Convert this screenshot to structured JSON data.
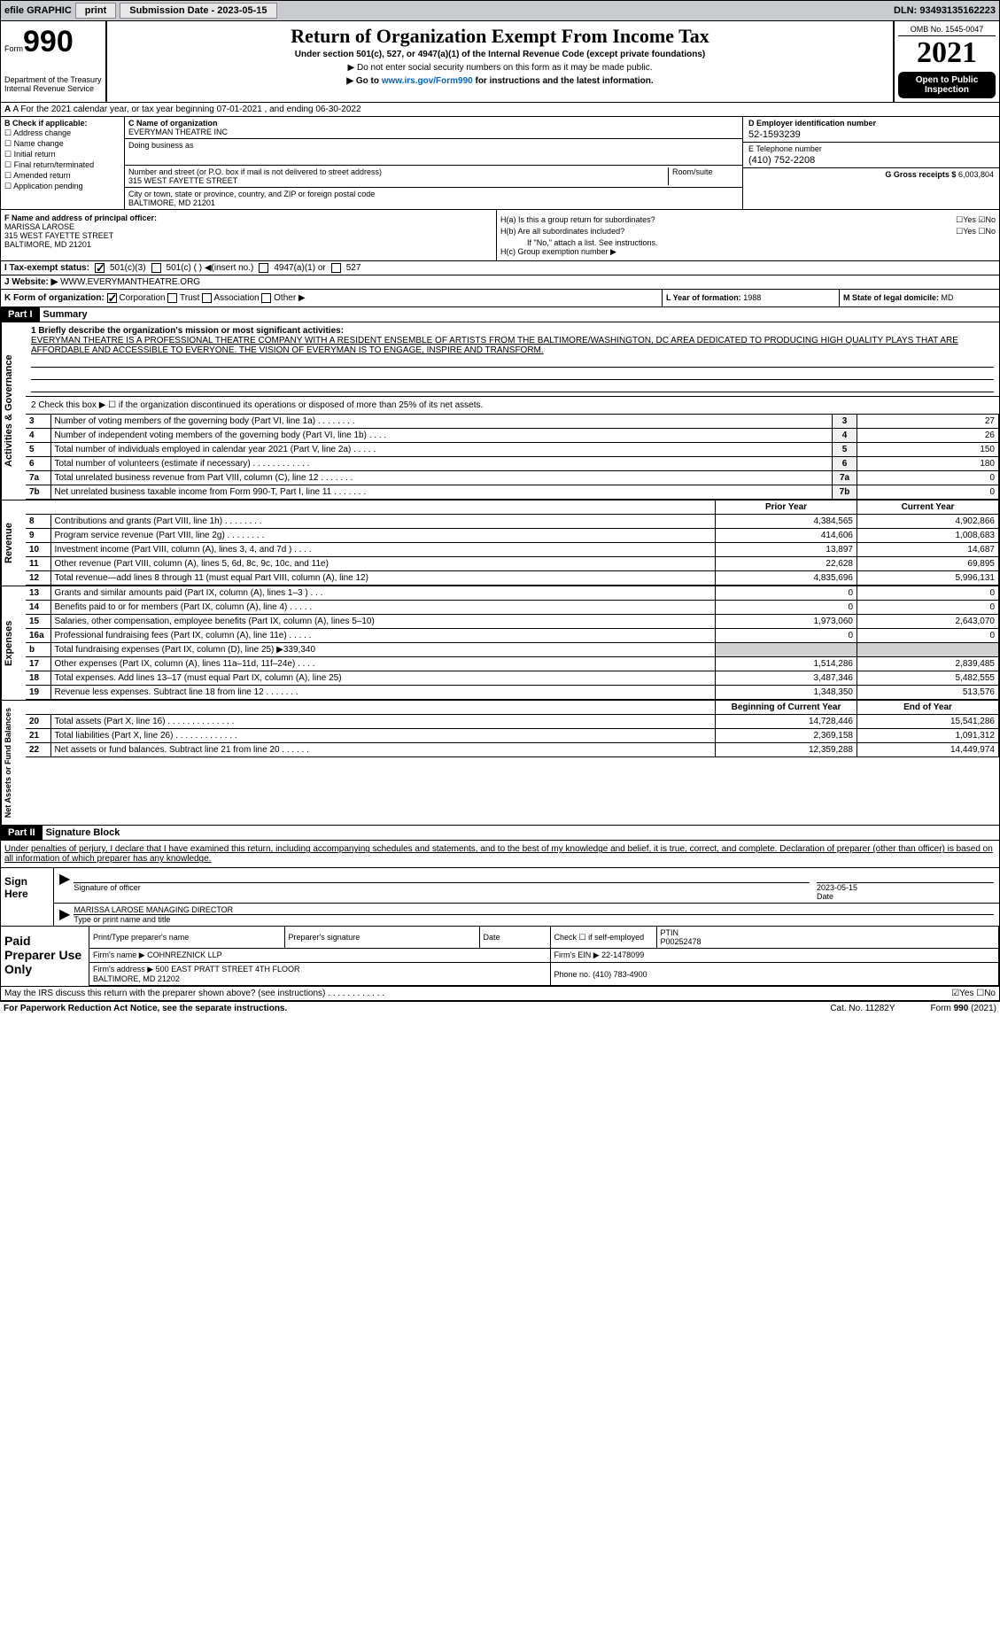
{
  "topbar": {
    "efile": "efile GRAPHIC",
    "print": "print",
    "subdate_label": "Submission Date - 2023-05-15",
    "dln": "DLN: 93493135162223"
  },
  "header": {
    "form_prefix": "Form",
    "form_num": "990",
    "dept": "Department of the Treasury\nInternal Revenue Service",
    "title": "Return of Organization Exempt From Income Tax",
    "sub1": "Under section 501(c), 527, or 4947(a)(1) of the Internal Revenue Code (except private foundations)",
    "sub2": "▶ Do not enter social security numbers on this form as it may be made public.",
    "sub3": "▶ Go to www.irs.gov/Form990 for instructions and the latest information.",
    "link": "www.irs.gov/Form990",
    "omb": "OMB No. 1545-0047",
    "year": "2021",
    "open": "Open to Public Inspection"
  },
  "row_a": {
    "text": "A For the 2021 calendar year, or tax year beginning 07-01-2021   , and ending 06-30-2022"
  },
  "col_b": {
    "label": "B Check if applicable:",
    "items": [
      "Address change",
      "Name change",
      "Initial return",
      "Final return/terminated",
      "Amended return",
      "Application pending"
    ]
  },
  "col_c": {
    "name_label": "C Name of organization",
    "name": "EVERYMAN THEATRE INC",
    "dba_label": "Doing business as",
    "dba": "",
    "addr_label": "Number and street (or P.O. box if mail is not delivered to street address)",
    "addr": "315 WEST FAYETTE STREET",
    "room_label": "Room/suite",
    "city_label": "City or town, state or province, country, and ZIP or foreign postal code",
    "city": "BALTIMORE, MD  21201"
  },
  "col_d": {
    "d_label": "D Employer identification number",
    "d_val": "52-1593239",
    "e_label": "E Telephone number",
    "e_val": "(410) 752-2208",
    "g_label": "G Gross receipts $",
    "g_val": "6,003,804"
  },
  "col_f": {
    "label": "F Name and address of principal officer:",
    "name": "MARISSA LAROSE",
    "addr1": "315 WEST FAYETTE STREET",
    "addr2": "BALTIMORE, MD  21201"
  },
  "col_h": {
    "ha": "H(a)  Is this a group return for subordinates?",
    "ha_ans": "☐Yes ☑No",
    "hb": "H(b)  Are all subordinates included?",
    "hb_ans": "☐Yes ☐No",
    "hb_note": "If \"No,\" attach a list. See instructions.",
    "hc": "H(c)  Group exemption number ▶"
  },
  "tax_status": {
    "i_label": "I  Tax-exempt status:",
    "opts": [
      "501(c)(3)",
      "501(c) (  ) ◀(insert no.)",
      "4947(a)(1) or",
      "527"
    ],
    "checked": 0
  },
  "website": {
    "j_label": "J  Website: ▶",
    "val": "WWW.EVERYMANTHEATRE.ORG"
  },
  "row_k": {
    "k_label": "K Form of organization:",
    "opts": [
      "Corporation",
      "Trust",
      "Association",
      "Other ▶"
    ],
    "checked": 0,
    "l_label": "L Year of formation:",
    "l_val": "1988",
    "m_label": "M State of legal domicile:",
    "m_val": "MD"
  },
  "part1": {
    "hdr": "Part I",
    "title": "Summary",
    "sidebar1": "Activities & Governance",
    "sidebar2": "Revenue",
    "sidebar3": "Expenses",
    "sidebar4": "Net Assets or Fund Balances",
    "q1": "1  Briefly describe the organization's mission or most significant activities:",
    "mission": "EVERYMAN THEATRE IS A PROFESSIONAL THEATRE COMPANY WITH A RESIDENT ENSEMBLE OF ARTISTS FROM THE BALTIMORE/WASHINGTON, DC AREA DEDICATED TO PRODUCING HIGH QUALITY PLAYS THAT ARE AFFORDABLE AND ACCESSIBLE TO EVERYONE. THE VISION OF EVERYMAN IS TO ENGAGE, INSPIRE AND TRANSFORM.",
    "q2": "2  Check this box ▶ ☐ if the organization discontinued its operations or disposed of more than 25% of its net assets.",
    "rows_gov": [
      {
        "n": "3",
        "d": "Number of voting members of the governing body (Part VI, line 1a)  .  .  .  .  .  .  .  .",
        "box": "3",
        "v": "27"
      },
      {
        "n": "4",
        "d": "Number of independent voting members of the governing body (Part VI, line 1b)  .  .  .  .",
        "box": "4",
        "v": "26"
      },
      {
        "n": "5",
        "d": "Total number of individuals employed in calendar year 2021 (Part V, line 2a)  .  .  .  .  .",
        "box": "5",
        "v": "150"
      },
      {
        "n": "6",
        "d": "Total number of volunteers (estimate if necessary)  .  .  .  .  .  .  .  .  .  .  .  .",
        "box": "6",
        "v": "180"
      },
      {
        "n": "7a",
        "d": "Total unrelated business revenue from Part VIII, column (C), line 12  .  .  .  .  .  .  .",
        "box": "7a",
        "v": "0"
      },
      {
        "n": "7b",
        "d": "Net unrelated business taxable income from Form 990-T, Part I, line 11  .  .  .  .  .  .  .",
        "box": "7b",
        "v": "0"
      }
    ],
    "col_prior": "Prior Year",
    "col_current": "Current Year",
    "rows_rev": [
      {
        "n": "8",
        "d": "Contributions and grants (Part VIII, line 1h)  .  .  .  .  .  .  .  .",
        "p": "4,384,565",
        "c": "4,902,866"
      },
      {
        "n": "9",
        "d": "Program service revenue (Part VIII, line 2g)  .  .  .  .  .  .  .  .",
        "p": "414,606",
        "c": "1,008,683"
      },
      {
        "n": "10",
        "d": "Investment income (Part VIII, column (A), lines 3, 4, and 7d )  .  .  .  .",
        "p": "13,897",
        "c": "14,687"
      },
      {
        "n": "11",
        "d": "Other revenue (Part VIII, column (A), lines 5, 6d, 8c, 9c, 10c, and 11e)",
        "p": "22,628",
        "c": "69,895"
      },
      {
        "n": "12",
        "d": "Total revenue—add lines 8 through 11 (must equal Part VIII, column (A), line 12)",
        "p": "4,835,696",
        "c": "5,996,131"
      }
    ],
    "rows_exp": [
      {
        "n": "13",
        "d": "Grants and similar amounts paid (Part IX, column (A), lines 1–3 )  .  .  .",
        "p": "0",
        "c": "0"
      },
      {
        "n": "14",
        "d": "Benefits paid to or for members (Part IX, column (A), line 4)  .  .  .  .  .",
        "p": "0",
        "c": "0"
      },
      {
        "n": "15",
        "d": "Salaries, other compensation, employee benefits (Part IX, column (A), lines 5–10)",
        "p": "1,973,060",
        "c": "2,643,070"
      },
      {
        "n": "16a",
        "d": "Professional fundraising fees (Part IX, column (A), line 11e)  .  .  .  .  .",
        "p": "0",
        "c": "0"
      },
      {
        "n": "b",
        "d": "Total fundraising expenses (Part IX, column (D), line 25) ▶339,340",
        "p": "",
        "c": "",
        "shade": true
      },
      {
        "n": "17",
        "d": "Other expenses (Part IX, column (A), lines 11a–11d, 11f–24e)  .  .  .  .",
        "p": "1,514,286",
        "c": "2,839,485"
      },
      {
        "n": "18",
        "d": "Total expenses. Add lines 13–17 (must equal Part IX, column (A), line 25)",
        "p": "3,487,346",
        "c": "5,482,555"
      },
      {
        "n": "19",
        "d": "Revenue less expenses. Subtract line 18 from line 12  .  .  .  .  .  .  .",
        "p": "1,348,350",
        "c": "513,576"
      }
    ],
    "col_begin": "Beginning of Current Year",
    "col_end": "End of Year",
    "rows_net": [
      {
        "n": "20",
        "d": "Total assets (Part X, line 16)  .  .  .  .  .  .  .  .  .  .  .  .  .  .",
        "p": "14,728,446",
        "c": "15,541,286"
      },
      {
        "n": "21",
        "d": "Total liabilities (Part X, line 26)  .  .  .  .  .  .  .  .  .  .  .  .  .",
        "p": "2,369,158",
        "c": "1,091,312"
      },
      {
        "n": "22",
        "d": "Net assets or fund balances. Subtract line 21 from line 20  .  .  .  .  .  .",
        "p": "12,359,288",
        "c": "14,449,974"
      }
    ]
  },
  "part2": {
    "hdr": "Part II",
    "title": "Signature Block",
    "decl": "Under penalties of perjury, I declare that I have examined this return, including accompanying schedules and statements, and to the best of my knowledge and belief, it is true, correct, and complete. Declaration of preparer (other than officer) is based on all information of which preparer has any knowledge.",
    "sign_here": "Sign Here",
    "sig_officer": "Signature of officer",
    "sig_date": "Date",
    "sig_date_val": "2023-05-15",
    "sig_name": "MARISSA LAROSE  MANAGING DIRECTOR",
    "sig_name_label": "Type or print name and title",
    "paid": "Paid Preparer Use Only",
    "prep_name_label": "Print/Type preparer's name",
    "prep_sig_label": "Preparer's signature",
    "prep_date_label": "Date",
    "prep_check_label": "Check ☐ if self-employed",
    "ptin_label": "PTIN",
    "ptin": "P00252478",
    "firm_name_label": "Firm's name    ▶",
    "firm_name": "COHNREZNICK LLP",
    "firm_ein_label": "Firm's EIN ▶",
    "firm_ein": "22-1478099",
    "firm_addr_label": "Firm's address ▶",
    "firm_addr": "500 EAST PRATT STREET 4TH FLOOR\nBALTIMORE, MD  21202",
    "phone_label": "Phone no.",
    "phone": "(410) 783-4900",
    "discuss": "May the IRS discuss this return with the preparer shown above? (see instructions)  .  .  .  .  .  .  .  .  .  .  .  .",
    "discuss_ans": "☑Yes  ☐No"
  },
  "footer": {
    "left": "For Paperwork Reduction Act Notice, see the separate instructions.",
    "cat": "Cat. No. 11282Y",
    "form": "Form 990 (2021)"
  }
}
